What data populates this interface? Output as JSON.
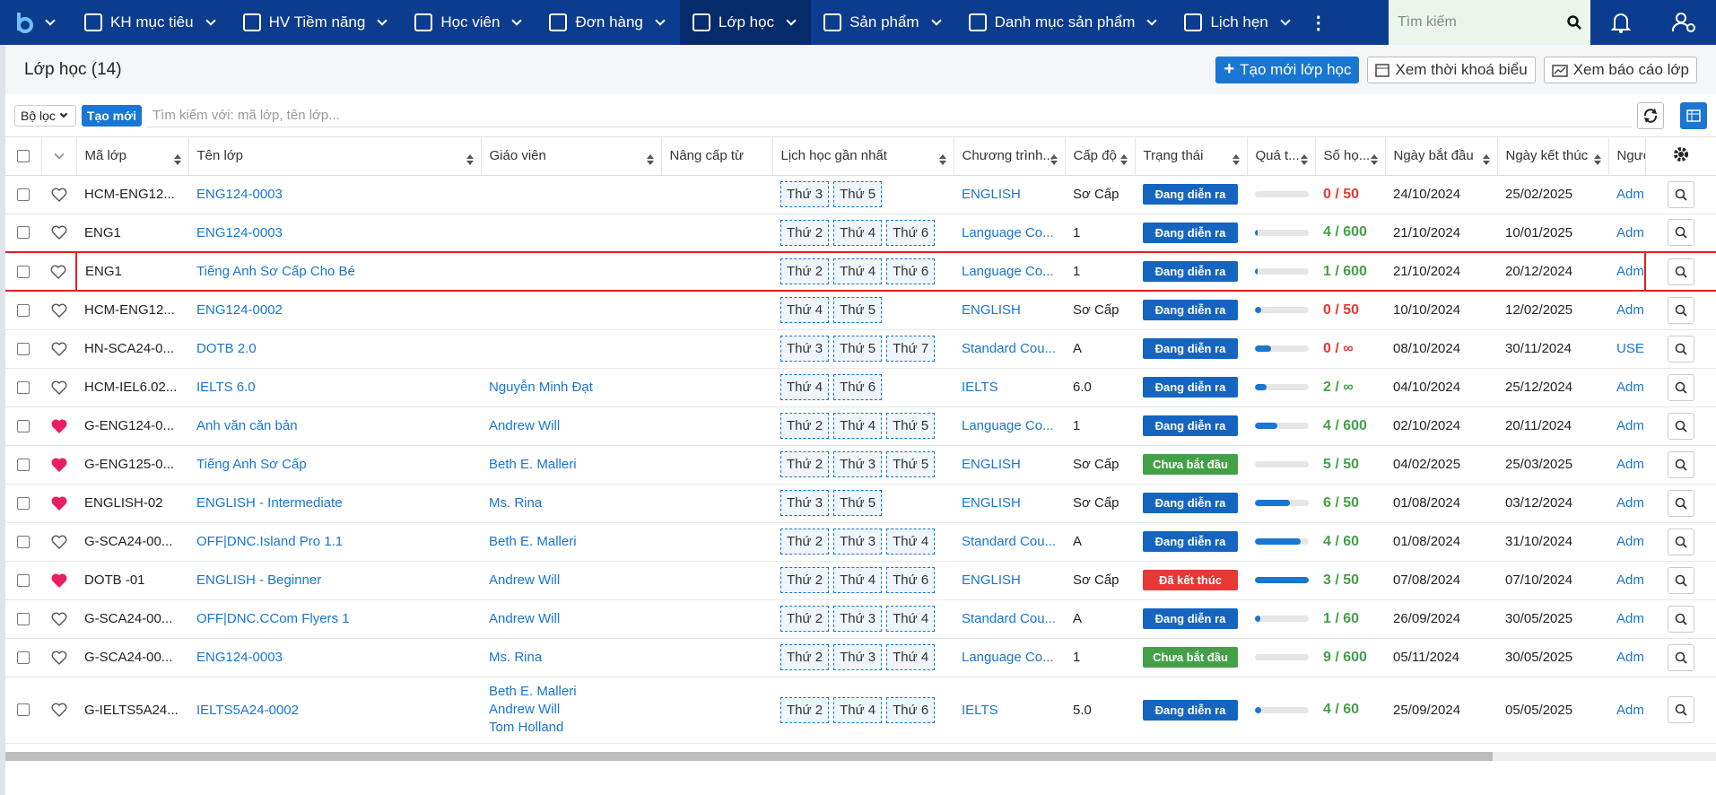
{
  "nav": {
    "items": [
      {
        "label": "KH mục tiêu"
      },
      {
        "label": "HV Tiềm năng"
      },
      {
        "label": "Học viên"
      },
      {
        "label": "Đơn hàng"
      },
      {
        "label": "Lớp học",
        "active": true
      },
      {
        "label": "Sản phẩm"
      },
      {
        "label": "Danh mục sản phẩm"
      },
      {
        "label": "Lịch hẹn"
      }
    ],
    "search_placeholder": "Tìm kiếm"
  },
  "header": {
    "title": "Lớp học (14)",
    "buttons": [
      "Tạo mới lớp học",
      "Xem thời khoá biểu",
      "Xem báo cáo lớp"
    ]
  },
  "filter": {
    "filter_label": "Bộ lọc",
    "new_button": "Tạo mới",
    "search_placeholder": "Tìm kiếm với:  mã lớp, tên lớp..."
  },
  "table": {
    "columns": [
      "Mã lớp",
      "Tên lớp",
      "Giáo viên",
      "Nâng cấp từ",
      "Lịch học gần nhất",
      "Chương trình...",
      "Cấp độ",
      "Trạng thái",
      "Quá t...",
      "Số họ...",
      "Ngày bắt đầu",
      "Ngày kết thúc",
      "Người"
    ],
    "rows": [
      {
        "favorite": false,
        "code": "HCM-ENG12...",
        "name": "ENG124-0003",
        "teachers": [],
        "schedule": [
          "Thứ 3",
          "Thứ 5"
        ],
        "program": "ENGLISH",
        "level": "Sơ Cấp",
        "status": "Đang diễn ra",
        "status_color": "#1565c0",
        "progress": 0,
        "students": "0 / 50",
        "start": "24/10/2024",
        "end": "25/02/2025",
        "owner": "Adm"
      },
      {
        "favorite": false,
        "code": "ENG1",
        "name": "ENG124-0003",
        "teachers": [],
        "schedule": [
          "Thứ 2",
          "Thứ 4",
          "Thứ 6"
        ],
        "program": "Language Co...",
        "level": "1",
        "status": "Đang diễn ra",
        "status_color": "#1565c0",
        "progress": 5,
        "students": "4 / 600",
        "start": "21/10/2024",
        "end": "10/01/2025",
        "owner": "Adm"
      },
      {
        "favorite": false,
        "highlight": true,
        "code": "ENG1",
        "name": "Tiếng Anh Sơ Cấp Cho Bé",
        "teachers": [],
        "schedule": [
          "Thứ 2",
          "Thứ 4",
          "Thứ 6"
        ],
        "program": "Language Co...",
        "level": "1",
        "status": "Đang diễn ra",
        "status_color": "#1565c0",
        "progress": 5,
        "students": "1 / 600",
        "start": "21/10/2024",
        "end": "20/12/2024",
        "owner": "Adm"
      },
      {
        "favorite": false,
        "code": "HCM-ENG12...",
        "name": "ENG124-0002",
        "teachers": [],
        "schedule": [
          "Thứ 4",
          "Thứ 5"
        ],
        "program": "ENGLISH",
        "level": "Sơ Cấp",
        "status": "Đang diễn ra",
        "status_color": "#1565c0",
        "progress": 12,
        "students": "0 / 50",
        "start": "10/10/2024",
        "end": "12/02/2025",
        "owner": "Adm"
      },
      {
        "favorite": false,
        "code": "HN-SCA24-0...",
        "name": "DOTB 2.0",
        "teachers": [],
        "schedule": [
          "Thứ 3",
          "Thứ 5",
          "Thứ 7"
        ],
        "program": "Standard Cou...",
        "level": "A",
        "status": "Đang diễn ra",
        "status_color": "#1565c0",
        "progress": 30,
        "students": "0 / ∞",
        "start": "08/10/2024",
        "end": "30/11/2024",
        "owner": "USEI"
      },
      {
        "favorite": false,
        "code": "HCM-IEL6.02...",
        "name": "IELTS 6.0",
        "teachers": [
          "Nguyễn Minh Đạt"
        ],
        "schedule": [
          "Thứ 4",
          "Thứ 6"
        ],
        "program": "IELTS",
        "level": "6.0",
        "status": "Đang diễn ra",
        "status_color": "#1565c0",
        "progress": 22,
        "students": "2 / ∞",
        "start": "04/10/2024",
        "end": "25/12/2024",
        "owner": "Adm"
      },
      {
        "favorite": true,
        "code": "G-ENG124-0...",
        "name": "Anh văn căn bản",
        "teachers": [
          "Andrew Will"
        ],
        "schedule": [
          "Thứ 2",
          "Thứ 4",
          "Thứ 5"
        ],
        "program": "Language Co...",
        "level": "1",
        "status": "Đang diễn ra",
        "status_color": "#1565c0",
        "progress": 42,
        "students": "4 / 600",
        "start": "02/10/2024",
        "end": "20/11/2024",
        "owner": "Adm"
      },
      {
        "favorite": true,
        "code": "G-ENG125-0...",
        "name": "Tiếng Anh Sơ Cấp",
        "teachers": [
          "Beth E. Malleri"
        ],
        "schedule": [
          "Thứ 2",
          "Thứ 3",
          "Thứ 5"
        ],
        "program": "ENGLISH",
        "level": "Sơ Cấp",
        "status": "Chưa bắt đầu",
        "status_color": "#43a047",
        "progress": 0,
        "students": "5 / 50",
        "start": "04/02/2025",
        "end": "25/03/2025",
        "owner": "Adm"
      },
      {
        "favorite": true,
        "code": "ENGLISH-02",
        "name": "ENGLISH - Intermediate",
        "teachers": [
          "Ms. Rina"
        ],
        "schedule": [
          "Thứ 3",
          "Thứ 5"
        ],
        "program": "ENGLISH",
        "level": "Sơ Cấp",
        "status": "Đang diễn ra",
        "status_color": "#1565c0",
        "progress": 65,
        "students": "6 / 50",
        "start": "01/08/2024",
        "end": "03/12/2024",
        "owner": "Adm"
      },
      {
        "favorite": false,
        "code": "G-SCA24-00...",
        "name": "OFF|DNC.Island Pro 1.1",
        "teachers": [
          "Beth E. Malleri"
        ],
        "schedule": [
          "Thứ 2",
          "Thứ 3",
          "Thứ 4"
        ],
        "program": "Standard Cou...",
        "level": "A",
        "status": "Đang diễn ra",
        "status_color": "#1565c0",
        "progress": 85,
        "students": "4 / 60",
        "start": "01/08/2024",
        "end": "31/10/2024",
        "owner": "Adm"
      },
      {
        "favorite": true,
        "code": "DOTB -01",
        "name": "ENGLISH - Beginner",
        "teachers": [
          "Andrew Will"
        ],
        "schedule": [
          "Thứ 2",
          "Thứ 4",
          "Thứ 6"
        ],
        "program": "ENGLISH",
        "level": "Sơ Cấp",
        "status": "Đã kết thúc",
        "status_color": "#e53935",
        "progress": 100,
        "students": "3 / 50",
        "start": "07/08/2024",
        "end": "07/10/2024",
        "owner": "Adm"
      },
      {
        "favorite": false,
        "code": "G-SCA24-00...",
        "name": "OFF|DNC.CCom Flyers 1",
        "teachers": [
          "Andrew Will"
        ],
        "schedule": [
          "Thứ 2",
          "Thứ 3",
          "Thứ 4"
        ],
        "program": "Standard Cou...",
        "level": "A",
        "status": "Đang diễn ra",
        "status_color": "#1565c0",
        "progress": 10,
        "students": "1 / 60",
        "start": "26/09/2024",
        "end": "30/05/2025",
        "owner": "Adm"
      },
      {
        "favorite": false,
        "code": "G-SCA24-00...",
        "name": "ENG124-0003",
        "teachers": [
          "Ms. Rina"
        ],
        "schedule": [
          "Thứ 2",
          "Thứ 3",
          "Thứ 4"
        ],
        "program": "Language Co...",
        "level": "1",
        "status": "Chưa bắt đầu",
        "status_color": "#43a047",
        "progress": 0,
        "students": "9 / 600",
        "start": "05/11/2024",
        "end": "30/05/2025",
        "owner": "Adm"
      },
      {
        "favorite": false,
        "code": "G-IELTS5A24...",
        "name": "IELTS5A24-0002",
        "teachers": [
          "Beth E. Malleri",
          "Andrew Will",
          "Tom Holland"
        ],
        "schedule": [
          "Thứ 2",
          "Thứ 4",
          "Thứ 6"
        ],
        "program": "IELTS",
        "level": "5.0",
        "status": "Đang diễn ra",
        "status_color": "#1565c0",
        "progress": 12,
        "students": "4 / 60",
        "start": "25/09/2024",
        "end": "05/05/2025",
        "owner": "Adm"
      }
    ]
  }
}
